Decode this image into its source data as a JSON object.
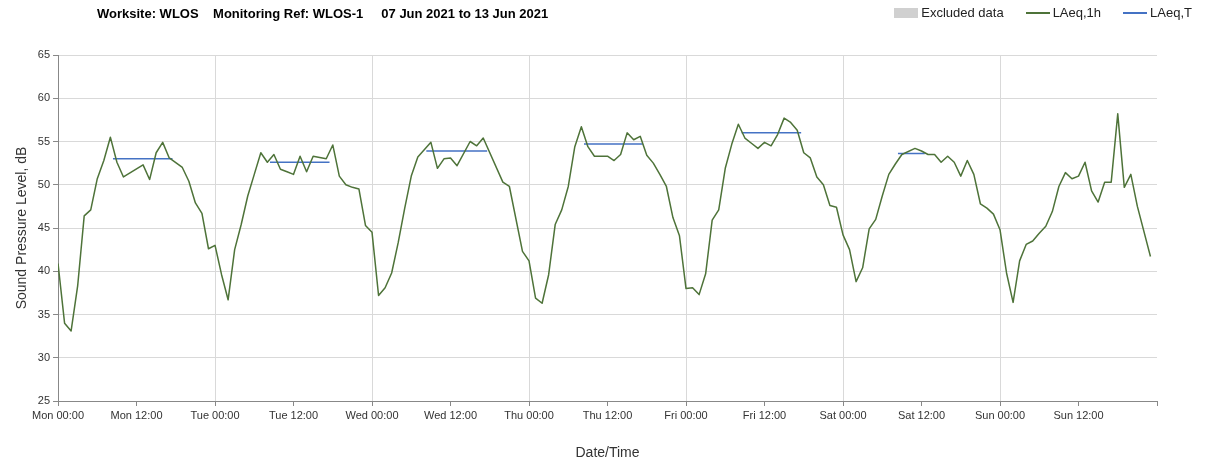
{
  "chart_data": {
    "type": "line",
    "title": "Worksite: WLOS    Monitoring Ref: WLOS-1     07 Jun 2021 to 13 Jun 2021",
    "xlabel": "Date/Time",
    "ylabel": "Sound Pressure Level, dB",
    "xlim": [
      "2021-06-07T00:00",
      "2021-06-14T00:00"
    ],
    "xticks": [
      {
        "value": "2021-06-07T00:00",
        "label": "Mon 00:00"
      },
      {
        "value": "2021-06-07T12:00",
        "label": "Mon 12:00"
      },
      {
        "value": "2021-06-08T00:00",
        "label": "Tue 00:00"
      },
      {
        "value": "2021-06-08T12:00",
        "label": "Tue 12:00"
      },
      {
        "value": "2021-06-09T00:00",
        "label": "Wed 00:00"
      },
      {
        "value": "2021-06-09T12:00",
        "label": "Wed 12:00"
      },
      {
        "value": "2021-06-10T00:00",
        "label": "Thu 00:00"
      },
      {
        "value": "2021-06-10T12:00",
        "label": "Thu 12:00"
      },
      {
        "value": "2021-06-11T00:00",
        "label": "Fri 00:00"
      },
      {
        "value": "2021-06-11T12:00",
        "label": "Fri 12:00"
      },
      {
        "value": "2021-06-12T00:00",
        "label": "Sat 00:00"
      },
      {
        "value": "2021-06-12T12:00",
        "label": "Sat 12:00"
      },
      {
        "value": "2021-06-13T00:00",
        "label": "Sun 00:00"
      },
      {
        "value": "2021-06-13T12:00",
        "label": "Sun 12:00"
      },
      {
        "value": "2021-06-14T00:00",
        "label": null
      }
    ],
    "ylim": [
      25,
      65
    ],
    "yticks": [
      25,
      30,
      35,
      40,
      45,
      50,
      55,
      60,
      65
    ],
    "grid": true,
    "legend": "top right",
    "marker": "none",
    "series": [
      {
        "name": "Excluded data",
        "type": "area",
        "color": "#d0d0d0"
      },
      {
        "name": "LAeq,1h",
        "color": "#4e7339",
        "x": [
          "2021-06-07T00:00",
          "2021-06-07T01:00",
          "2021-06-07T02:00",
          "2021-06-07T03:00",
          "2021-06-07T04:00",
          "2021-06-07T05:00",
          "2021-06-07T06:00",
          "2021-06-07T07:00",
          "2021-06-07T08:00",
          "2021-06-07T09:00",
          "2021-06-07T10:00",
          "2021-06-07T13:00",
          "2021-06-07T14:00",
          "2021-06-07T15:00",
          "2021-06-07T16:00",
          "2021-06-07T17:00",
          "2021-06-07T19:00",
          "2021-06-07T20:00",
          "2021-06-07T21:00",
          "2021-06-07T22:00",
          "2021-06-07T23:00",
          "2021-06-08T00:00",
          "2021-06-08T01:00",
          "2021-06-08T02:00",
          "2021-06-08T03:00",
          "2021-06-08T04:00",
          "2021-06-08T05:00",
          "2021-06-08T06:00",
          "2021-06-08T07:00",
          "2021-06-08T08:00",
          "2021-06-08T09:00",
          "2021-06-08T10:00",
          "2021-06-08T11:00",
          "2021-06-08T12:00",
          "2021-06-08T13:00",
          "2021-06-08T14:00",
          "2021-06-08T15:00",
          "2021-06-08T17:00",
          "2021-06-08T18:00",
          "2021-06-08T19:00",
          "2021-06-08T20:00",
          "2021-06-08T21:00",
          "2021-06-08T22:00",
          "2021-06-08T23:00",
          "2021-06-09T00:00",
          "2021-06-09T01:00",
          "2021-06-09T02:00",
          "2021-06-09T03:00",
          "2021-06-09T04:00",
          "2021-06-09T05:00",
          "2021-06-09T06:00",
          "2021-06-09T07:00",
          "2021-06-09T09:00",
          "2021-06-09T10:00",
          "2021-06-09T11:00",
          "2021-06-09T12:00",
          "2021-06-09T13:00",
          "2021-06-09T15:00",
          "2021-06-09T16:00",
          "2021-06-09T17:00",
          "2021-06-09T20:00",
          "2021-06-09T21:00",
          "2021-06-09T23:00",
          "2021-06-10T00:00",
          "2021-06-10T01:00",
          "2021-06-10T02:00",
          "2021-06-10T03:00",
          "2021-06-10T04:00",
          "2021-06-10T05:00",
          "2021-06-10T06:00",
          "2021-06-10T07:00",
          "2021-06-10T08:00",
          "2021-06-10T09:00",
          "2021-06-10T10:00",
          "2021-06-10T12:00",
          "2021-06-10T13:00",
          "2021-06-10T14:00",
          "2021-06-10T15:00",
          "2021-06-10T16:00",
          "2021-06-10T17:00",
          "2021-06-10T18:00",
          "2021-06-10T19:00",
          "2021-06-10T20:00",
          "2021-06-10T21:00",
          "2021-06-10T22:00",
          "2021-06-10T23:00",
          "2021-06-11T00:00",
          "2021-06-11T01:00",
          "2021-06-11T02:00",
          "2021-06-11T03:00",
          "2021-06-11T04:00",
          "2021-06-11T05:00",
          "2021-06-11T06:00",
          "2021-06-11T07:00",
          "2021-06-11T08:00",
          "2021-06-11T09:00",
          "2021-06-11T10:00",
          "2021-06-11T11:00",
          "2021-06-11T12:00",
          "2021-06-11T13:00",
          "2021-06-11T14:00",
          "2021-06-11T15:00",
          "2021-06-11T16:00",
          "2021-06-11T17:00",
          "2021-06-11T18:00",
          "2021-06-11T19:00",
          "2021-06-11T20:00",
          "2021-06-11T21:00",
          "2021-06-11T22:00",
          "2021-06-11T23:00",
          "2021-06-12T00:00",
          "2021-06-12T01:00",
          "2021-06-12T02:00",
          "2021-06-12T03:00",
          "2021-06-12T04:00",
          "2021-06-12T05:00",
          "2021-06-12T06:00",
          "2021-06-12T07:00",
          "2021-06-12T08:00",
          "2021-06-12T09:00",
          "2021-06-12T11:00",
          "2021-06-12T12:00",
          "2021-06-12T13:00",
          "2021-06-12T14:00",
          "2021-06-12T15:00",
          "2021-06-12T16:00",
          "2021-06-12T17:00",
          "2021-06-12T18:00",
          "2021-06-12T19:00",
          "2021-06-12T20:00",
          "2021-06-12T21:00",
          "2021-06-12T22:00",
          "2021-06-12T23:00",
          "2021-06-13T00:00",
          "2021-06-13T01:00",
          "2021-06-13T02:00",
          "2021-06-13T03:00",
          "2021-06-13T04:00",
          "2021-06-13T05:00",
          "2021-06-13T06:00",
          "2021-06-13T07:00",
          "2021-06-13T08:00",
          "2021-06-13T09:00",
          "2021-06-13T10:00",
          "2021-06-13T11:00",
          "2021-06-13T12:00",
          "2021-06-13T13:00",
          "2021-06-13T14:00",
          "2021-06-13T15:00",
          "2021-06-13T16:00",
          "2021-06-13T17:00",
          "2021-06-13T18:00",
          "2021-06-13T19:00",
          "2021-06-13T20:00",
          "2021-06-13T21:00",
          "2021-06-13T23:00"
        ],
        "values": [
          40.9,
          34.0,
          33.1,
          38.3,
          46.4,
          47.1,
          50.7,
          52.8,
          55.5,
          52.6,
          50.9,
          52.3,
          50.6,
          53.7,
          54.9,
          53.1,
          52.0,
          50.4,
          47.9,
          46.7,
          42.6,
          43.0,
          39.6,
          36.7,
          42.5,
          45.4,
          48.7,
          51.2,
          53.7,
          52.6,
          53.5,
          51.8,
          51.5,
          51.2,
          53.3,
          51.5,
          53.3,
          53.0,
          54.6,
          51.0,
          50.0,
          49.7,
          49.5,
          45.3,
          44.5,
          37.2,
          38.1,
          39.8,
          43.3,
          47.3,
          51.0,
          53.2,
          54.9,
          51.9,
          53.0,
          53.1,
          52.2,
          55.0,
          54.5,
          55.4,
          50.3,
          49.8,
          42.3,
          41.2,
          36.9,
          36.3,
          39.6,
          45.4,
          47.1,
          49.8,
          54.4,
          56.7,
          54.4,
          53.3,
          53.3,
          52.8,
          53.5,
          56.0,
          55.2,
          55.6,
          53.4,
          52.5,
          51.2,
          49.8,
          46.2,
          44.1,
          38.0,
          38.1,
          37.3,
          39.7,
          45.9,
          47.1,
          51.9,
          54.7,
          57.0,
          55.4,
          54.8,
          54.2,
          54.9,
          54.5,
          55.8,
          57.7,
          57.2,
          56.3,
          53.7,
          53.1,
          50.9,
          50.0,
          47.6,
          47.4,
          44.2,
          42.5,
          38.8,
          40.4,
          44.9,
          46.0,
          48.7,
          51.2,
          52.4,
          53.5,
          54.2,
          53.9,
          53.5,
          53.5,
          52.6,
          53.3,
          52.6,
          51.0,
          52.8,
          51.2,
          47.8,
          47.3,
          46.6,
          44.8,
          39.8,
          36.4,
          41.2,
          43.1,
          43.5,
          44.4,
          45.2,
          46.9,
          49.8,
          51.4,
          50.7,
          51.0,
          52.6,
          49.3,
          48.0,
          50.3,
          50.3,
          58.2,
          49.7,
          51.2,
          47.5,
          41.7
        ]
      },
      {
        "name": "LAeq,T",
        "color": "#4472c4",
        "x": [
          "2021-06-07T08:24",
          "2021-06-07T17:30",
          "2021-06-07T20:00",
          "2021-06-08T08:24",
          "2021-06-08T17:30",
          "2021-06-08T20:00",
          "2021-06-09T08:18",
          "2021-06-09T17:36",
          "2021-06-09T20:00",
          "2021-06-10T08:24",
          "2021-06-10T17:24",
          "2021-06-10T20:00",
          "2021-06-11T08:30",
          "2021-06-11T17:36",
          "2021-06-11T20:00",
          "2021-06-12T08:24",
          "2021-06-12T12:30"
        ],
        "values": [
          53.0,
          53.0,
          null,
          52.6,
          52.6,
          null,
          53.9,
          53.9,
          null,
          54.7,
          54.7,
          null,
          56.0,
          56.0,
          null,
          53.6,
          53.6
        ]
      }
    ]
  }
}
